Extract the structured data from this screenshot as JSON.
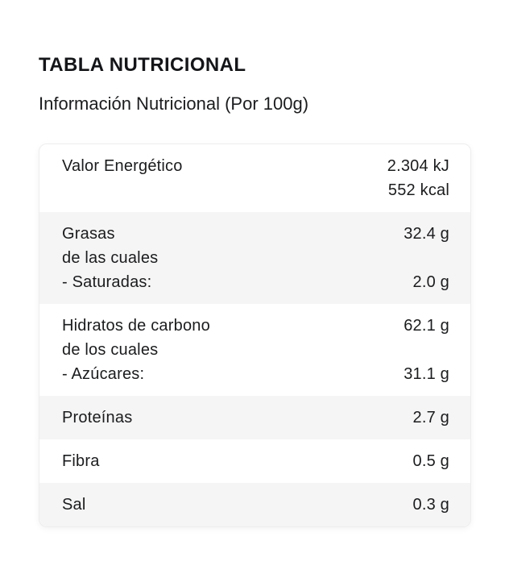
{
  "page": {
    "title": "TABLA NUTRICIONAL",
    "subtitle": "Información Nutricional (Por 100g)"
  },
  "colors": {
    "text": "#1b1c1e",
    "row_alt_background": "#f5f5f5",
    "card_border": "#ededee",
    "page_background": "#ffffff"
  },
  "table": {
    "rows": [
      {
        "lines": [
          {
            "label": "Valor Energético",
            "value": "2.304 kJ"
          },
          {
            "label": "",
            "value": "552 kcal"
          }
        ]
      },
      {
        "lines": [
          {
            "label": "Grasas",
            "value": "32.4 g"
          },
          {
            "label": "de las cuales",
            "value": ""
          },
          {
            "label": "- Saturadas:",
            "value": "2.0 g"
          }
        ]
      },
      {
        "lines": [
          {
            "label": "Hidratos de carbono",
            "value": "62.1 g"
          },
          {
            "label": "de los cuales",
            "value": ""
          },
          {
            "label": "- Azúcares:",
            "value": "31.1 g"
          }
        ]
      },
      {
        "lines": [
          {
            "label": "Proteínas",
            "value": "2.7 g"
          }
        ]
      },
      {
        "lines": [
          {
            "label": "Fibra",
            "value": "0.5 g"
          }
        ]
      },
      {
        "lines": [
          {
            "label": "Sal",
            "value": "0.3 g"
          }
        ]
      }
    ]
  }
}
